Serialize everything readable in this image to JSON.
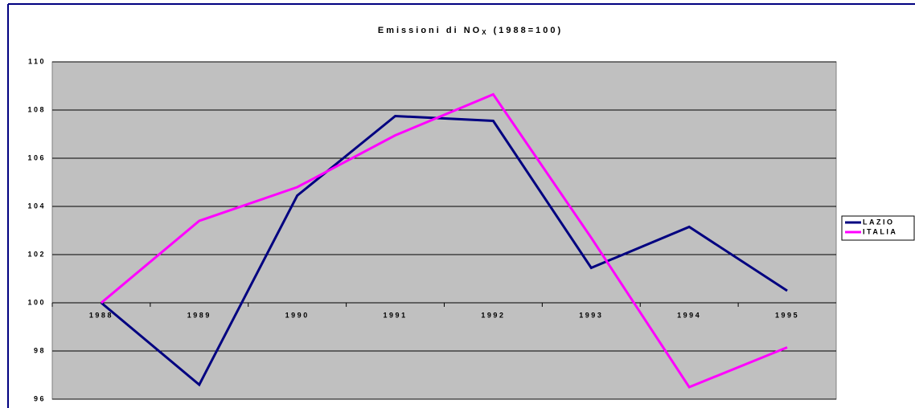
{
  "chart_data": {
    "type": "line",
    "title": "Emissioni di NO",
    "title_subscript": "X",
    "title_suffix": "(1988=100)",
    "categories": [
      "1988",
      "1989",
      "1990",
      "1991",
      "1992",
      "1993",
      "1994",
      "1995"
    ],
    "series": [
      {
        "name": "LAZIO",
        "color": "#000080",
        "values": [
          100,
          96.6,
          104.45,
          107.75,
          107.55,
          101.45,
          103.15,
          100.5
        ]
      },
      {
        "name": "ITALIA",
        "color": "#ff00ff",
        "values": [
          100,
          103.4,
          104.8,
          106.95,
          108.65,
          102.7,
          96.5,
          98.15
        ]
      }
    ],
    "ylim": [
      96,
      110
    ],
    "yticks": [
      96,
      98,
      100,
      102,
      104,
      106,
      108,
      110
    ],
    "grid": true,
    "legend": "right"
  }
}
